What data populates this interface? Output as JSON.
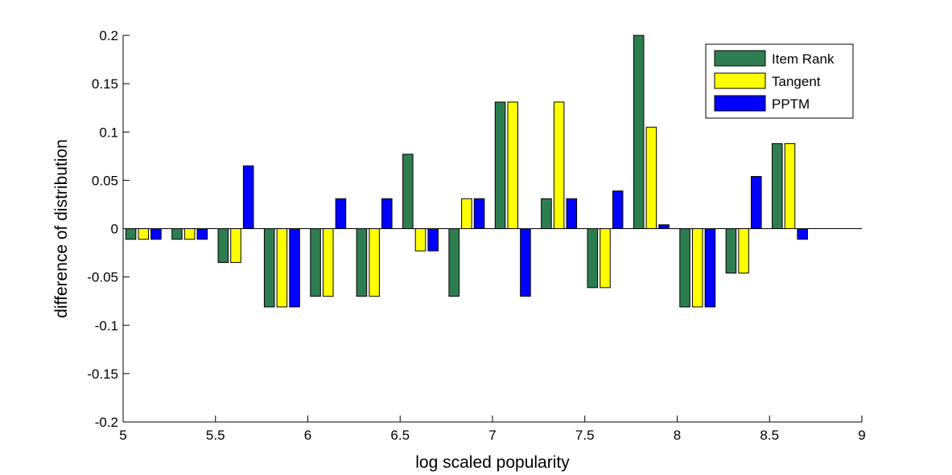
{
  "chart_data": {
    "type": "bar",
    "xlabel": "log scaled popularity",
    "ylabel": "difference of distribution",
    "xlim": [
      5,
      9
    ],
    "ylim": [
      -0.2,
      0.2
    ],
    "x_ticks": [
      5,
      5.5,
      6,
      6.5,
      7,
      7.5,
      8,
      8.5,
      9
    ],
    "x_tick_labels": [
      "5",
      "5.5",
      "6",
      "6.5",
      "7",
      "7.5",
      "8",
      "8.5",
      "9"
    ],
    "y_ticks": [
      -0.2,
      -0.15,
      -0.1,
      -0.05,
      0,
      0.05,
      0.1,
      0.15,
      0.2
    ],
    "y_tick_labels": [
      "-0.2",
      "-0.15",
      "-0.1",
      "-0.05",
      "0",
      "0.05",
      "0.1",
      "0.15",
      "0.2"
    ],
    "grid": false,
    "legend_position": "top-right",
    "bar_group_width": 0.205,
    "x": [
      5.11,
      5.36,
      5.61,
      5.86,
      6.11,
      6.36,
      6.61,
      6.86,
      7.11,
      7.36,
      7.61,
      7.86,
      8.11,
      8.36,
      8.61
    ],
    "series": [
      {
        "name": "Item Rank",
        "color": "#2e7d50",
        "values": [
          -0.011,
          -0.011,
          -0.035,
          -0.081,
          -0.07,
          -0.07,
          0.077,
          -0.07,
          0.131,
          0.031,
          -0.061,
          0.2,
          -0.081,
          -0.046,
          0.088
        ]
      },
      {
        "name": "Tangent",
        "color": "#ffff00",
        "values": [
          -0.011,
          -0.011,
          -0.035,
          -0.081,
          -0.07,
          -0.07,
          -0.023,
          0.031,
          0.131,
          0.131,
          -0.061,
          0.105,
          -0.081,
          -0.046,
          0.088
        ]
      },
      {
        "name": "PPTM",
        "color": "#0000ff",
        "values": [
          -0.011,
          -0.011,
          0.065,
          -0.081,
          0.031,
          0.031,
          -0.023,
          0.031,
          -0.07,
          0.031,
          0.039,
          0.004,
          -0.081,
          0.054,
          -0.011
        ]
      }
    ]
  }
}
